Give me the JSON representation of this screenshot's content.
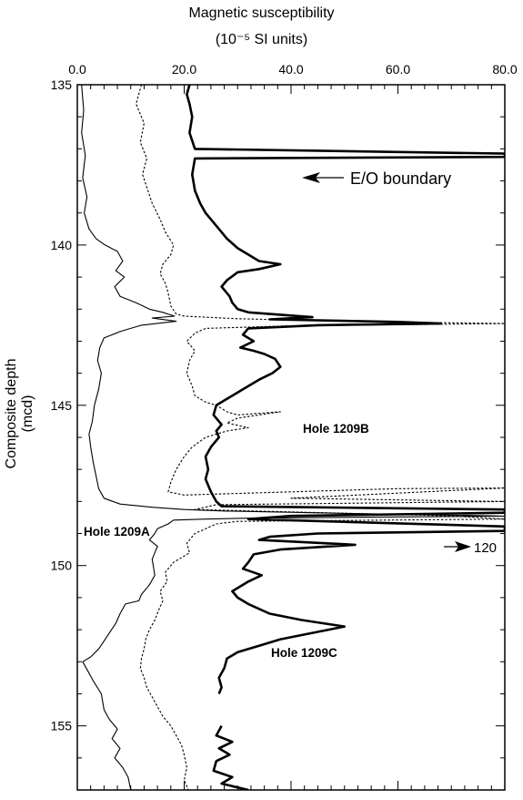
{
  "chart_data": {
    "type": "line",
    "title_line1": "Magnetic susceptibility",
    "title_line2": "(10⁻⁵ SI units)",
    "ylabel": "Composite depth (mcd)",
    "xlim": [
      0,
      80
    ],
    "ylim": [
      135,
      157
    ],
    "y_inverted": true,
    "x_ticks": [
      "0.0",
      "20.0",
      "40.0",
      "60.0",
      "80.0"
    ],
    "y_ticks": [
      "135",
      "140",
      "145",
      "150",
      "155"
    ],
    "annotations": {
      "eo_boundary": "E/O boundary",
      "offscale": "120"
    },
    "boundary_depth": 137.2,
    "series": [
      {
        "name": "Hole 1209A",
        "style": "thin-solid",
        "points": [
          [
            0.8,
            135.0
          ],
          [
            1.2,
            135.8
          ],
          [
            0.8,
            136.5
          ],
          [
            1.5,
            137.2
          ],
          [
            1.0,
            137.9
          ],
          [
            1.8,
            138.5
          ],
          [
            1.3,
            139.0
          ],
          [
            2.2,
            139.5
          ],
          [
            3.5,
            139.8
          ],
          [
            5.2,
            140.0
          ],
          [
            7.5,
            140.2
          ],
          [
            8.5,
            140.5
          ],
          [
            7.2,
            140.8
          ],
          [
            8.8,
            141.0
          ],
          [
            7.0,
            141.3
          ],
          [
            8.0,
            141.6
          ],
          [
            11.0,
            141.8
          ],
          [
            13.5,
            142.0
          ],
          [
            16.0,
            142.1
          ],
          [
            18.2,
            142.22
          ],
          [
            14.0,
            142.28
          ],
          [
            18.5,
            142.38
          ],
          [
            12.0,
            142.5
          ],
          [
            8.0,
            142.7
          ],
          [
            5.0,
            142.9
          ],
          [
            4.2,
            143.2
          ],
          [
            3.8,
            143.6
          ],
          [
            4.5,
            144.0
          ],
          [
            4.0,
            144.5
          ],
          [
            3.2,
            145.0
          ],
          [
            2.8,
            145.5
          ],
          [
            2.2,
            145.9
          ],
          [
            2.5,
            146.3
          ],
          [
            3.0,
            146.8
          ],
          [
            3.5,
            147.2
          ],
          [
            4.0,
            147.6
          ],
          [
            5.0,
            147.9
          ],
          [
            8.0,
            148.08
          ],
          [
            14.0,
            148.18
          ],
          [
            20.0,
            148.25
          ],
          [
            28.0,
            148.3
          ],
          [
            44.0,
            148.35
          ],
          [
            60.0,
            148.4
          ],
          [
            78.0,
            148.45
          ],
          [
            80.0,
            148.46
          ],
          [
            60.0,
            148.48
          ],
          [
            32.0,
            148.52
          ],
          [
            24.0,
            148.55
          ],
          [
            18.0,
            148.58
          ],
          [
            17.0,
            148.7
          ],
          [
            15.0,
            148.85
          ],
          [
            14.5,
            149.0
          ],
          [
            13.5,
            149.2
          ],
          [
            15.0,
            149.4
          ],
          [
            14.0,
            149.8
          ],
          [
            14.5,
            150.3
          ],
          [
            13.5,
            150.6
          ],
          [
            12.0,
            150.9
          ],
          [
            11.5,
            151.1
          ],
          [
            9.0,
            151.2
          ],
          [
            8.0,
            151.5
          ],
          [
            7.2,
            151.8
          ],
          [
            6.0,
            152.1
          ],
          [
            5.0,
            152.35
          ],
          [
            4.0,
            152.6
          ],
          [
            2.5,
            152.85
          ],
          [
            1.0,
            153.0
          ],
          [
            2.0,
            153.3
          ],
          [
            3.0,
            153.6
          ],
          [
            4.5,
            154.0
          ],
          [
            5.0,
            154.5
          ],
          [
            6.0,
            154.8
          ],
          [
            7.5,
            155.1
          ],
          [
            6.5,
            155.4
          ],
          [
            8.0,
            155.7
          ],
          [
            7.0,
            156.0
          ],
          [
            8.5,
            156.3
          ],
          [
            9.5,
            156.6
          ],
          [
            10.0,
            157.0
          ]
        ]
      },
      {
        "name": "Hole 1209B",
        "style": "dotted",
        "points": [
          [
            12.0,
            135.0
          ],
          [
            11.0,
            135.6
          ],
          [
            12.5,
            136.2
          ],
          [
            11.8,
            136.8
          ],
          [
            13.0,
            137.3
          ],
          [
            12.2,
            137.8
          ],
          [
            13.0,
            138.2
          ],
          [
            14.0,
            138.7
          ],
          [
            15.5,
            139.2
          ],
          [
            16.5,
            139.6
          ],
          [
            18.0,
            140.0
          ],
          [
            17.5,
            140.3
          ],
          [
            16.0,
            140.6
          ],
          [
            15.5,
            140.9
          ],
          [
            16.5,
            141.2
          ],
          [
            17.0,
            141.5
          ],
          [
            17.5,
            141.9
          ],
          [
            18.5,
            142.15
          ],
          [
            20.0,
            142.22
          ],
          [
            30.0,
            142.3
          ],
          [
            50.0,
            142.38
          ],
          [
            80.0,
            142.45
          ],
          [
            40.0,
            142.52
          ],
          [
            24.0,
            142.6
          ],
          [
            22.0,
            142.75
          ],
          [
            20.5,
            143.0
          ],
          [
            22.0,
            143.3
          ],
          [
            21.0,
            143.6
          ],
          [
            20.5,
            144.0
          ],
          [
            21.5,
            144.4
          ],
          [
            22.0,
            144.7
          ],
          [
            24.0,
            144.9
          ],
          [
            26.0,
            145.0
          ],
          [
            28.0,
            145.2
          ],
          [
            30.0,
            145.3
          ],
          [
            38.0,
            145.2
          ],
          [
            30.0,
            145.4
          ],
          [
            28.0,
            145.55
          ],
          [
            32.0,
            145.7
          ],
          [
            28.0,
            145.8
          ],
          [
            24.0,
            146.0
          ],
          [
            21.5,
            146.3
          ],
          [
            20.0,
            146.6
          ],
          [
            18.5,
            147.0
          ],
          [
            17.5,
            147.4
          ],
          [
            17.0,
            147.7
          ],
          [
            20.0,
            147.8
          ],
          [
            60.0,
            147.6
          ],
          [
            80.0,
            147.58
          ],
          [
            40.0,
            147.9
          ],
          [
            80.0,
            148.0
          ],
          [
            26.0,
            148.1
          ],
          [
            22.0,
            148.25
          ],
          [
            70.0,
            148.45
          ],
          [
            80.0,
            148.55
          ],
          [
            30.0,
            148.62
          ],
          [
            26.0,
            148.7
          ],
          [
            24.0,
            148.85
          ],
          [
            22.0,
            149.0
          ],
          [
            20.5,
            149.3
          ],
          [
            21.0,
            149.6
          ],
          [
            18.0,
            149.9
          ],
          [
            16.5,
            150.2
          ],
          [
            16.8,
            150.5
          ],
          [
            15.5,
            150.8
          ],
          [
            16.0,
            151.1
          ],
          [
            15.2,
            151.4
          ],
          [
            14.5,
            151.7
          ],
          [
            13.5,
            152.0
          ],
          [
            12.8,
            152.3
          ],
          [
            12.5,
            152.6
          ],
          [
            12.0,
            152.9
          ],
          [
            11.8,
            153.2
          ],
          [
            12.5,
            153.5
          ],
          [
            13.0,
            153.8
          ],
          [
            14.0,
            154.1
          ],
          [
            15.0,
            154.4
          ],
          [
            16.0,
            154.7
          ],
          [
            17.5,
            155.0
          ],
          [
            18.5,
            155.3
          ],
          [
            19.5,
            155.6
          ],
          [
            20.0,
            155.9
          ],
          [
            20.5,
            156.3
          ],
          [
            20.0,
            156.7
          ],
          [
            20.8,
            157.0
          ]
        ]
      },
      {
        "name": "Hole 1209C",
        "style": "thick-solid",
        "points": [
          [
            21.0,
            135.0
          ],
          [
            20.5,
            135.3
          ],
          [
            21.0,
            135.6
          ],
          [
            21.5,
            136.0
          ],
          [
            21.0,
            136.5
          ],
          [
            22.0,
            137.0
          ],
          [
            80.0,
            137.15
          ],
          [
            80.0,
            137.25
          ],
          [
            22.0,
            137.3
          ],
          [
            21.5,
            137.8
          ],
          [
            22.0,
            138.3
          ],
          [
            23.0,
            138.7
          ],
          [
            24.0,
            139.0
          ],
          [
            26.0,
            139.4
          ],
          [
            28.0,
            139.8
          ],
          [
            30.0,
            140.1
          ],
          [
            34.0,
            140.5
          ],
          [
            38.0,
            140.6
          ],
          [
            34.0,
            140.75
          ],
          [
            30.0,
            140.85
          ],
          [
            28.0,
            141.1
          ],
          [
            27.0,
            141.3
          ],
          [
            28.5,
            141.6
          ],
          [
            29.0,
            141.8
          ],
          [
            30.0,
            142.0
          ],
          [
            32.0,
            142.1
          ],
          [
            36.0,
            142.15
          ],
          [
            44.0,
            142.25
          ],
          [
            36.0,
            142.32
          ],
          [
            60.0,
            142.4
          ],
          [
            68.0,
            142.45
          ],
          [
            45.0,
            142.5
          ],
          [
            32.0,
            142.6
          ],
          [
            31.0,
            142.8
          ],
          [
            33.0,
            143.0
          ],
          [
            30.5,
            143.2
          ],
          [
            33.0,
            143.3
          ],
          [
            35.0,
            143.4
          ],
          [
            37.0,
            143.55
          ],
          [
            38.0,
            143.8
          ],
          [
            36.5,
            144.0
          ],
          [
            34.0,
            144.2
          ],
          [
            31.0,
            144.5
          ],
          [
            28.0,
            144.8
          ],
          [
            26.0,
            145.0
          ],
          [
            25.5,
            145.3
          ],
          [
            27.0,
            145.6
          ],
          [
            26.0,
            145.8
          ],
          [
            26.5,
            146.0
          ],
          [
            25.0,
            146.3
          ],
          [
            24.0,
            146.6
          ],
          [
            24.5,
            147.0
          ],
          [
            24.0,
            147.3
          ],
          [
            25.0,
            147.7
          ],
          [
            26.0,
            148.0
          ],
          [
            27.0,
            148.15
          ],
          [
            80.0,
            148.25
          ],
          [
            80.0,
            148.35
          ],
          [
            40.0,
            148.45
          ],
          [
            32.0,
            148.55
          ],
          [
            80.0,
            148.78
          ],
          [
            80.0,
            148.92
          ],
          [
            45.0,
            149.0
          ],
          [
            36.0,
            149.1
          ],
          [
            34.0,
            149.2
          ],
          [
            52.0,
            149.35
          ],
          [
            38.0,
            149.5
          ],
          [
            33.0,
            149.65
          ],
          [
            32.0,
            149.9
          ],
          [
            31.0,
            150.1
          ],
          [
            34.5,
            150.3
          ],
          [
            32.0,
            150.5
          ],
          [
            29.0,
            150.8
          ],
          [
            30.0,
            151.0
          ],
          [
            32.0,
            151.2
          ],
          [
            36.0,
            151.5
          ],
          [
            42.0,
            151.7
          ],
          [
            50.0,
            151.9
          ],
          [
            44.0,
            152.1
          ],
          [
            38.0,
            152.3
          ],
          [
            34.0,
            152.5
          ],
          [
            30.0,
            152.7
          ],
          [
            28.0,
            152.9
          ],
          [
            27.5,
            153.2
          ],
          [
            26.5,
            153.5
          ],
          [
            27.0,
            153.8
          ],
          [
            26.5,
            154.0
          ]
        ]
      },
      {
        "name": "",
        "style": "thick-solid",
        "points": [
          [
            27.0,
            155.0
          ],
          [
            26.0,
            155.3
          ],
          [
            29.0,
            155.5
          ],
          [
            26.5,
            155.7
          ],
          [
            28.5,
            155.9
          ],
          [
            26.0,
            156.1
          ],
          [
            25.5,
            156.4
          ],
          [
            29.0,
            156.6
          ],
          [
            27.0,
            156.8
          ],
          [
            32.0,
            157.0
          ]
        ]
      }
    ]
  }
}
